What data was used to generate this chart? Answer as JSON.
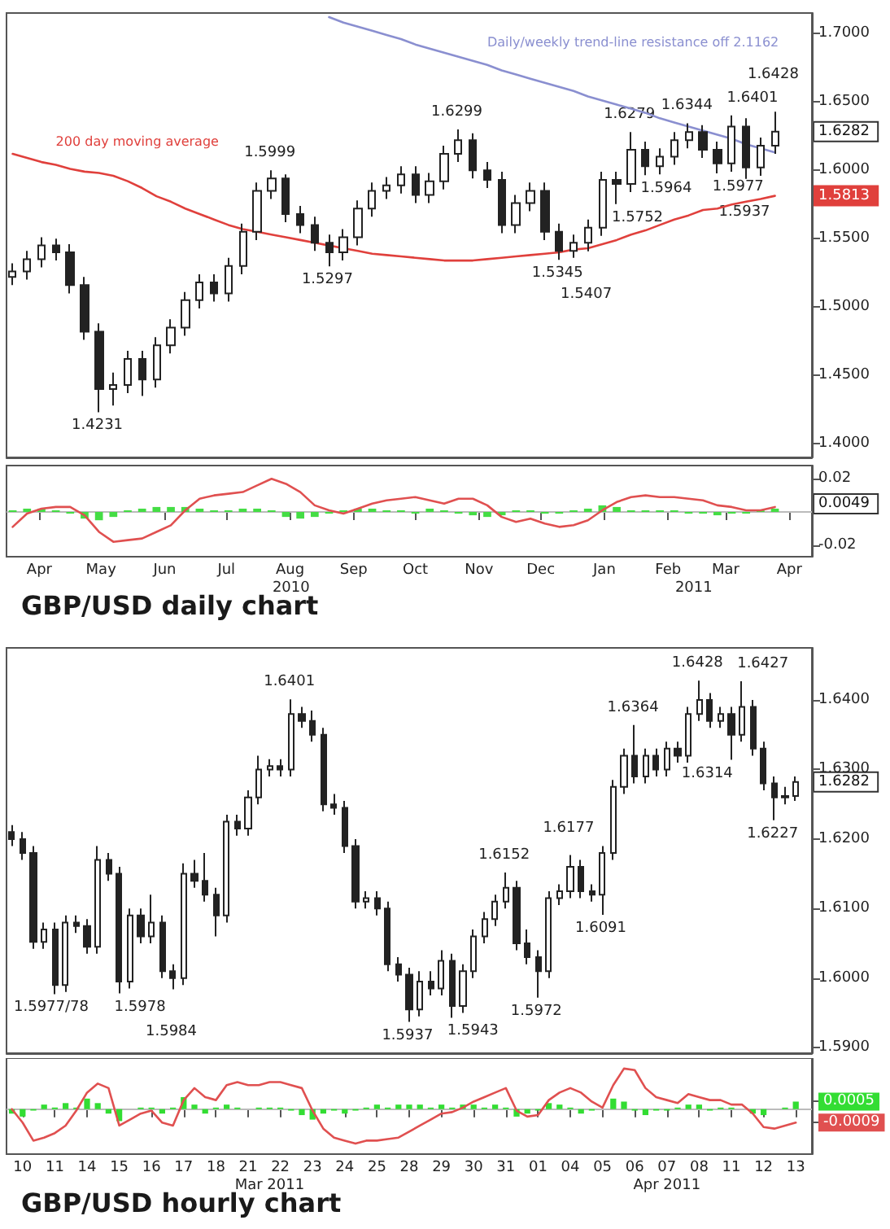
{
  "chart_data": [
    {
      "type": "candlestick",
      "color": "#222222",
      "tick_labels": "y",
      "x": [
        "2010-04-02",
        "2010-04-09",
        "2010-04-16",
        "2010-04-23",
        "2010-04-30",
        "2010-05-07",
        "2010-05-14",
        "2010-05-21",
        "2010-05-28",
        "2010-06-04",
        "2010-06-11",
        "2010-06-18",
        "2010-06-25",
        "2010-07-02",
        "2010-07-09",
        "2010-07-16",
        "2010-07-23",
        "2010-07-30",
        "2010-08-06",
        "2010-08-13",
        "2010-08-20",
        "2010-08-27",
        "2010-09-03",
        "2010-09-10",
        "2010-09-17",
        "2010-09-24",
        "2010-10-01",
        "2010-10-08",
        "2010-10-15",
        "2010-10-22",
        "2010-10-29",
        "2010-11-05",
        "2010-11-12",
        "2010-11-19",
        "2010-11-26",
        "2010-12-03",
        "2010-12-10",
        "2010-12-17",
        "2010-12-24",
        "2010-12-31",
        "2011-01-07",
        "2011-01-14",
        "2011-01-21",
        "2011-01-28",
        "2011-02-04",
        "2011-02-11",
        "2011-02-18",
        "2011-02-25",
        "2011-03-04",
        "2011-03-11",
        "2011-03-18",
        "2011-03-25",
        "2011-04-01",
        "2011-04-08"
      ],
      "ohlc": [
        [
          1.522,
          1.532,
          1.516,
          1.526
        ],
        [
          1.526,
          1.541,
          1.52,
          1.535
        ],
        [
          1.535,
          1.551,
          1.529,
          1.545
        ],
        [
          1.545,
          1.55,
          1.534,
          1.54
        ],
        [
          1.54,
          1.546,
          1.51,
          1.516
        ],
        [
          1.516,
          1.522,
          1.476,
          1.482
        ],
        [
          1.482,
          1.488,
          1.4231,
          1.44
        ],
        [
          1.44,
          1.452,
          1.428,
          1.443
        ],
        [
          1.443,
          1.468,
          1.437,
          1.462
        ],
        [
          1.462,
          1.468,
          1.435,
          1.447
        ],
        [
          1.447,
          1.478,
          1.441,
          1.472
        ],
        [
          1.472,
          1.491,
          1.466,
          1.485
        ],
        [
          1.485,
          1.511,
          1.479,
          1.505
        ],
        [
          1.505,
          1.524,
          1.499,
          1.518
        ],
        [
          1.518,
          1.524,
          1.504,
          1.51
        ],
        [
          1.51,
          1.536,
          1.504,
          1.53
        ],
        [
          1.53,
          1.561,
          1.524,
          1.555
        ],
        [
          1.555,
          1.591,
          1.549,
          1.585
        ],
        [
          1.585,
          1.5999,
          1.579,
          1.594
        ],
        [
          1.594,
          1.597,
          1.562,
          1.568
        ],
        [
          1.568,
          1.574,
          1.554,
          1.56
        ],
        [
          1.56,
          1.566,
          1.541,
          1.547
        ],
        [
          1.547,
          1.553,
          1.5297,
          1.54
        ],
        [
          1.54,
          1.557,
          1.534,
          1.551
        ],
        [
          1.551,
          1.578,
          1.545,
          1.572
        ],
        [
          1.572,
          1.591,
          1.566,
          1.585
        ],
        [
          1.585,
          1.595,
          1.579,
          1.589
        ],
        [
          1.589,
          1.603,
          1.583,
          1.597
        ],
        [
          1.597,
          1.603,
          1.576,
          1.582
        ],
        [
          1.582,
          1.598,
          1.576,
          1.592
        ],
        [
          1.592,
          1.618,
          1.586,
          1.612
        ],
        [
          1.612,
          1.6299,
          1.606,
          1.622
        ],
        [
          1.622,
          1.627,
          1.594,
          1.6
        ],
        [
          1.6,
          1.606,
          1.587,
          1.593
        ],
        [
          1.593,
          1.599,
          1.554,
          1.56
        ],
        [
          1.56,
          1.582,
          1.554,
          1.576
        ],
        [
          1.576,
          1.591,
          1.57,
          1.585
        ],
        [
          1.585,
          1.591,
          1.549,
          1.555
        ],
        [
          1.555,
          1.561,
          1.5345,
          1.541
        ],
        [
          1.541,
          1.553,
          1.536,
          1.547
        ],
        [
          1.547,
          1.564,
          1.5407,
          1.558
        ],
        [
          1.558,
          1.599,
          1.552,
          1.593
        ],
        [
          1.593,
          1.599,
          1.5752,
          1.59
        ],
        [
          1.59,
          1.6279,
          1.584,
          1.615
        ],
        [
          1.615,
          1.621,
          1.5964,
          1.603
        ],
        [
          1.603,
          1.616,
          1.597,
          1.61
        ],
        [
          1.61,
          1.628,
          1.604,
          1.622
        ],
        [
          1.622,
          1.6344,
          1.616,
          1.628
        ],
        [
          1.628,
          1.633,
          1.609,
          1.615
        ],
        [
          1.615,
          1.621,
          1.5977,
          1.605
        ],
        [
          1.605,
          1.6401,
          1.599,
          1.632
        ],
        [
          1.632,
          1.638,
          1.5937,
          1.602
        ],
        [
          1.602,
          1.624,
          1.596,
          1.618
        ],
        [
          1.618,
          1.6428,
          1.612,
          1.6282
        ]
      ],
      "series": [
        {
          "type": "line",
          "name": "200 day moving average",
          "color": "#e0403c",
          "values": [
            1.612,
            1.609,
            1.606,
            1.604,
            1.601,
            1.599,
            1.598,
            1.596,
            1.592,
            1.587,
            1.581,
            1.577,
            1.572,
            1.568,
            1.564,
            1.56,
            1.557,
            1.555,
            1.553,
            1.551,
            1.549,
            1.547,
            1.545,
            1.543,
            1.541,
            1.539,
            1.538,
            1.537,
            1.536,
            1.535,
            1.534,
            1.534,
            1.534,
            1.535,
            1.536,
            1.537,
            1.538,
            1.539,
            1.54,
            1.542,
            1.543,
            1.546,
            1.549,
            1.553,
            1.556,
            1.56,
            1.564,
            1.567,
            1.571,
            1.572,
            1.575,
            1.577,
            1.579,
            1.5813
          ]
        },
        {
          "type": "line",
          "name": "Daily/weekly trend-line resistance off 2.1162",
          "color": "#8a8fd0",
          "values": [
            null,
            null,
            null,
            null,
            null,
            null,
            null,
            null,
            null,
            null,
            null,
            null,
            null,
            null,
            null,
            null,
            null,
            null,
            null,
            null,
            null,
            null,
            1.712,
            1.708,
            1.705,
            1.702,
            1.699,
            1.696,
            1.692,
            1.689,
            1.686,
            1.683,
            1.68,
            1.677,
            1.673,
            1.67,
            1.667,
            1.664,
            1.661,
            1.658,
            1.654,
            1.651,
            1.648,
            1.645,
            1.642,
            1.638,
            1.635,
            1.632,
            1.629,
            1.626,
            1.623,
            1.619,
            1.616,
            1.613
          ]
        }
      ],
      "xlim": [
        "2010-03-30",
        "2011-04-26"
      ],
      "ylim": [
        1.39,
        1.715
      ],
      "yticks": [
        {
          "value": 1.4,
          "label": "1.4000"
        },
        {
          "value": 1.45,
          "label": "1.4500"
        },
        {
          "value": 1.5,
          "label": "1.5000"
        },
        {
          "value": 1.55,
          "label": "1.5500"
        },
        {
          "value": 1.6,
          "label": "1.6000"
        },
        {
          "value": 1.65,
          "label": "1.6500"
        },
        {
          "value": 1.7,
          "label": "1.7000"
        }
      ],
      "annotations": [
        {
          "text": "1.4231",
          "x": "2010-05-14",
          "y": 1.4231
        },
        {
          "text": "1.5999",
          "x": "2010-08-06",
          "y": 1.5999
        },
        {
          "text": "1.5297",
          "x": "2010-09-03",
          "y": 1.5297
        },
        {
          "text": "1.6299",
          "x": "2010-11-05",
          "y": 1.6299
        },
        {
          "text": "1.5345",
          "x": "2010-12-24",
          "y": 1.5345
        },
        {
          "text": "1.5407",
          "x": "2011-01-07",
          "y": 1.5407
        },
        {
          "text": "1.5752",
          "x": "2011-01-21",
          "y": 1.5752
        },
        {
          "text": "1.6279",
          "x": "2011-01-28",
          "y": 1.6279
        },
        {
          "text": "1.5964",
          "x": "2011-02-04",
          "y": 1.5964
        },
        {
          "text": "1.6344",
          "x": "2011-02-25",
          "y": 1.6344
        },
        {
          "text": "1.5977",
          "x": "2011-03-11",
          "y": 1.5977
        },
        {
          "text": "1.6401",
          "x": "2011-03-18",
          "y": 1.6401
        },
        {
          "text": "1.5937",
          "x": "2011-03-25",
          "y": 1.5937
        },
        {
          "text": "1.6428",
          "x": "2011-04-08",
          "y": 1.6428
        },
        {
          "text": "1.6282",
          "y": 1.6282
        },
        {
          "text": "1.5813",
          "y": 1.5813
        }
      ]
    },
    {
      "type": "line",
      "title": "GBP/USD daily chart",
      "x": [
        "2010-04-02",
        "2010-04-09",
        "2010-04-16",
        "2010-04-23",
        "2010-04-30",
        "2010-05-07",
        "2010-05-14",
        "2010-05-21",
        "2010-05-28",
        "2010-06-04",
        "2010-06-11",
        "2010-06-18",
        "2010-06-25",
        "2010-07-02",
        "2010-07-09",
        "2010-07-16",
        "2010-07-23",
        "2010-07-30",
        "2010-08-06",
        "2010-08-13",
        "2010-08-20",
        "2010-08-27",
        "2010-09-03",
        "2010-09-10",
        "2010-09-17",
        "2010-09-24",
        "2010-10-01",
        "2010-10-08",
        "2010-10-15",
        "2010-10-22",
        "2010-10-29",
        "2010-11-05",
        "2010-11-12",
        "2010-11-19",
        "2010-11-26",
        "2010-12-03",
        "2010-12-10",
        "2010-12-17",
        "2010-12-24",
        "2010-12-31",
        "2011-01-07",
        "2011-01-14",
        "2011-01-21",
        "2011-01-28",
        "2011-02-04",
        "2011-02-11",
        "2011-02-18",
        "2011-02-25",
        "2011-03-04",
        "2011-03-11",
        "2011-03-18",
        "2011-03-25",
        "2011-04-01",
        "2011-04-08"
      ],
      "series": [
        {
          "type": "bar",
          "color": "#44dd44",
          "values": [
            0.001,
            0.002,
            0.002,
            0.001,
            -0.001,
            -0.004,
            -0.005,
            -0.003,
            0.001,
            0.002,
            0.003,
            0.003,
            0.003,
            0.002,
            0.001,
            0.001,
            0.002,
            0.002,
            0.001,
            -0.003,
            -0.004,
            -0.003,
            -0.001,
            0.001,
            0.002,
            0.002,
            0.001,
            0.001,
            -0.001,
            0.002,
            0.001,
            -0.001,
            -0.002,
            -0.003,
            -0.002,
            0.001,
            0.001,
            -0.001,
            -0.001,
            0.001,
            0.002,
            0.004,
            0.003,
            0.001,
            0.001,
            0.001,
            0.001,
            -0.001,
            -0.001,
            -0.002,
            -0.001,
            -0.001,
            0.001,
            0.002
          ]
        },
        {
          "type": "line",
          "color": "#e05050",
          "values": [
            -0.009,
            -0.001,
            0.002,
            0.003,
            0.003,
            -0.002,
            -0.012,
            -0.018,
            -0.017,
            -0.016,
            -0.012,
            -0.008,
            0.001,
            0.008,
            0.01,
            0.011,
            0.012,
            0.016,
            0.02,
            0.017,
            0.012,
            0.004,
            0.001,
            -0.001,
            0.002,
            0.005,
            0.007,
            0.008,
            0.009,
            0.007,
            0.005,
            0.008,
            0.008,
            0.004,
            -0.003,
            -0.006,
            -0.004,
            -0.007,
            -0.009,
            -0.008,
            -0.005,
            0.001,
            0.006,
            0.009,
            0.01,
            0.009,
            0.009,
            0.008,
            0.007,
            0.004,
            0.003,
            0.001,
            0.001,
            0.003
          ]
        }
      ],
      "xlim": [
        "2010-03-30",
        "2011-04-26"
      ],
      "ylim": [
        -0.027,
        0.028
      ],
      "yticks": [
        -0.02,
        0.02
      ],
      "xticks": [
        {
          "value": "2010-04-15",
          "label": "Apr"
        },
        {
          "value": "2010-05-15",
          "label": "May"
        },
        {
          "value": "2010-06-15",
          "label": "Jun"
        },
        {
          "value": "2010-07-15",
          "label": "Jul"
        },
        {
          "value": "2010-08-15",
          "label": "Aug"
        },
        {
          "value": "2010-09-15",
          "label": "Sep"
        },
        {
          "value": "2010-10-15",
          "label": "Oct"
        },
        {
          "value": "2010-11-15",
          "label": "Nov"
        },
        {
          "value": "2010-12-15",
          "label": "Dec"
        },
        {
          "value": "2011-01-15",
          "label": "Jan"
        },
        {
          "value": "2011-02-15",
          "label": "Feb"
        },
        {
          "value": "2011-03-15",
          "label": "Mar"
        },
        {
          "value": "2011-04-15",
          "label": "Apr"
        }
      ],
      "ref_lines": [
        {
          "axis": "y",
          "value": 0,
          "color": "#bbbbbb"
        }
      ],
      "annotations": [
        {
          "text": "0.0049",
          "y": 0.0049
        },
        "2010",
        "2011"
      ]
    },
    {
      "type": "candlestick",
      "color": "#222222",
      "tick_labels": "y",
      "categories": [
        null,
        "10",
        null,
        null,
        "11",
        null,
        null,
        "14",
        null,
        null,
        "15",
        null,
        null,
        "16",
        null,
        null,
        "17",
        null,
        null,
        "18",
        null,
        null,
        "21",
        null,
        null,
        "22",
        null,
        null,
        "23",
        null,
        null,
        "24",
        null,
        null,
        "25",
        null,
        null,
        "28",
        null,
        null,
        "29",
        null,
        null,
        "30",
        null,
        null,
        "31",
        null,
        null,
        "01",
        null,
        null,
        "04",
        null,
        null,
        "05",
        null,
        null,
        "06",
        null,
        null,
        "07",
        null,
        null,
        "08",
        null,
        null,
        "11",
        null,
        null,
        "12",
        null,
        null,
        "13"
      ],
      "ohlc": [
        [
          1.621,
          1.622,
          1.619,
          1.62
        ],
        [
          1.62,
          1.621,
          1.617,
          1.618
        ],
        [
          1.618,
          1.619,
          1.6042,
          1.6052
        ],
        [
          1.6052,
          1.608,
          1.6042,
          1.607
        ],
        [
          1.607,
          1.608,
          1.5977,
          1.599
        ],
        [
          1.599,
          1.609,
          1.598,
          1.608
        ],
        [
          1.608,
          1.609,
          1.6065,
          1.6075
        ],
        [
          1.6075,
          1.6085,
          1.6035,
          1.6045
        ],
        [
          1.6045,
          1.619,
          1.6035,
          1.617
        ],
        [
          1.617,
          1.618,
          1.614,
          1.615
        ],
        [
          1.615,
          1.616,
          1.5978,
          1.5995
        ],
        [
          1.5995,
          1.61,
          1.5985,
          1.609
        ],
        [
          1.609,
          1.61,
          1.605,
          1.606
        ],
        [
          1.606,
          1.612,
          1.605,
          1.608
        ],
        [
          1.608,
          1.609,
          1.6,
          1.601
        ],
        [
          1.601,
          1.602,
          1.5984,
          1.6
        ],
        [
          1.6,
          1.6165,
          1.599,
          1.615
        ],
        [
          1.615,
          1.617,
          1.613,
          1.614
        ],
        [
          1.614,
          1.618,
          1.611,
          1.612
        ],
        [
          1.612,
          1.613,
          1.606,
          1.609
        ],
        [
          1.609,
          1.6235,
          1.608,
          1.6225
        ],
        [
          1.6225,
          1.6235,
          1.6205,
          1.6215
        ],
        [
          1.6215,
          1.627,
          1.6205,
          1.626
        ],
        [
          1.626,
          1.632,
          1.625,
          1.63
        ],
        [
          1.63,
          1.6315,
          1.629,
          1.6305
        ],
        [
          1.6305,
          1.6315,
          1.629,
          1.63
        ],
        [
          1.63,
          1.6401,
          1.629,
          1.638
        ],
        [
          1.638,
          1.639,
          1.636,
          1.637
        ],
        [
          1.637,
          1.6385,
          1.634,
          1.635
        ],
        [
          1.635,
          1.636,
          1.624,
          1.625
        ],
        [
          1.625,
          1.6265,
          1.6235,
          1.6245
        ],
        [
          1.6245,
          1.6255,
          1.618,
          1.619
        ],
        [
          1.619,
          1.62,
          1.61,
          1.611
        ],
        [
          1.611,
          1.6125,
          1.61,
          1.6115
        ],
        [
          1.6115,
          1.6125,
          1.609,
          1.61
        ],
        [
          1.61,
          1.611,
          1.601,
          1.602
        ],
        [
          1.602,
          1.603,
          1.5995,
          1.6005
        ],
        [
          1.6005,
          1.6015,
          1.5937,
          1.5955
        ],
        [
          1.5955,
          1.601,
          1.5945,
          1.5995
        ],
        [
          1.5995,
          1.601,
          1.5975,
          1.5985
        ],
        [
          1.5985,
          1.604,
          1.5975,
          1.6025
        ],
        [
          1.6025,
          1.6035,
          1.5943,
          1.596
        ],
        [
          1.596,
          1.602,
          1.595,
          1.601
        ],
        [
          1.601,
          1.607,
          1.6,
          1.606
        ],
        [
          1.606,
          1.6095,
          1.605,
          1.6085
        ],
        [
          1.6085,
          1.612,
          1.6075,
          1.611
        ],
        [
          1.611,
          1.6152,
          1.61,
          1.613
        ],
        [
          1.613,
          1.614,
          1.604,
          1.605
        ],
        [
          1.605,
          1.607,
          1.602,
          1.603
        ],
        [
          1.603,
          1.604,
          1.5972,
          1.601
        ],
        [
          1.601,
          1.6125,
          1.6,
          1.6115
        ],
        [
          1.6115,
          1.6135,
          1.6105,
          1.6125
        ],
        [
          1.6125,
          1.6177,
          1.6115,
          1.616
        ],
        [
          1.616,
          1.617,
          1.6115,
          1.6125
        ],
        [
          1.6125,
          1.6135,
          1.611,
          1.612
        ],
        [
          1.612,
          1.619,
          1.6091,
          1.618
        ],
        [
          1.618,
          1.6285,
          1.617,
          1.6275
        ],
        [
          1.6275,
          1.633,
          1.6265,
          1.632
        ],
        [
          1.632,
          1.6364,
          1.628,
          1.629
        ],
        [
          1.629,
          1.633,
          1.628,
          1.632
        ],
        [
          1.632,
          1.633,
          1.629,
          1.63
        ],
        [
          1.63,
          1.634,
          1.629,
          1.633
        ],
        [
          1.633,
          1.634,
          1.631,
          1.632
        ],
        [
          1.632,
          1.639,
          1.631,
          1.638
        ],
        [
          1.638,
          1.6428,
          1.637,
          1.64
        ],
        [
          1.64,
          1.641,
          1.636,
          1.637
        ],
        [
          1.637,
          1.639,
          1.636,
          1.638
        ],
        [
          1.638,
          1.639,
          1.6314,
          1.635
        ],
        [
          1.635,
          1.6427,
          1.634,
          1.639
        ],
        [
          1.639,
          1.64,
          1.632,
          1.633
        ],
        [
          1.633,
          1.634,
          1.627,
          1.628
        ],
        [
          1.628,
          1.629,
          1.6227,
          1.626
        ],
        [
          1.626,
          1.6275,
          1.625,
          1.6262
        ],
        [
          1.6262,
          1.629,
          1.6255,
          1.6282
        ]
      ],
      "value_labels": [
        null,
        null,
        null,
        null,
        "1.5977/78",
        null,
        null,
        null,
        null,
        null,
        "1.5978",
        null,
        null,
        null,
        null,
        "1.5984",
        null,
        null,
        null,
        null,
        null,
        null,
        null,
        null,
        null,
        null,
        "1.6401",
        null,
        null,
        null,
        null,
        null,
        null,
        null,
        null,
        null,
        null,
        "1.5937",
        null,
        null,
        null,
        "1.5943",
        null,
        null,
        null,
        null,
        "1.6152",
        null,
        null,
        "1.5972",
        null,
        null,
        "1.6177",
        null,
        null,
        "1.6091",
        null,
        null,
        "1.6364",
        null,
        null,
        null,
        null,
        null,
        "1.6428",
        null,
        null,
        "1.6314",
        "1.6427",
        null,
        null,
        "1.6227",
        null,
        null
      ],
      "ylim": [
        1.5892,
        1.6475
      ],
      "yticks": [
        {
          "value": 1.59,
          "label": "1.5900"
        },
        {
          "value": 1.6,
          "label": "1.6000"
        },
        {
          "value": 1.61,
          "label": "1.6100"
        },
        {
          "value": 1.62,
          "label": "1.6200"
        },
        {
          "value": 1.63,
          "label": "1.6300"
        },
        {
          "value": 1.64,
          "label": "1.6400"
        }
      ],
      "annotations": [
        {
          "text": "1.6282",
          "y": 1.6282
        }
      ]
    },
    {
      "type": "line",
      "title": "GBP/USD hourly chart",
      "ylim": [
        -0.003,
        0.0034
      ],
      "yticks": [
        -0.0009,
        0.0005
      ],
      "categories": [
        null,
        "10",
        null,
        null,
        "11",
        null,
        null,
        "14",
        null,
        null,
        "15",
        null,
        null,
        "16",
        null,
        null,
        "17",
        null,
        null,
        "18",
        null,
        null,
        "21",
        null,
        null,
        "22",
        null,
        null,
        "23",
        null,
        null,
        "24",
        null,
        null,
        "25",
        null,
        null,
        "28",
        null,
        null,
        "29",
        null,
        null,
        "30",
        null,
        null,
        "31",
        null,
        null,
        "01",
        null,
        null,
        "04",
        null,
        null,
        "05",
        null,
        null,
        "06",
        null,
        null,
        "07",
        null,
        null,
        "08",
        null,
        null,
        "11",
        null,
        null,
        "12",
        null,
        null,
        "13"
      ],
      "series": [
        {
          "type": "bar",
          "color": "#33dd33",
          "values": [
            -0.0003,
            -0.0005,
            -0.0001,
            0.0003,
            0.0001,
            0.0004,
            0.0001,
            0.0007,
            0.0004,
            -0.0003,
            -0.0008,
            0,
            0.0001,
            0.0001,
            -0.0003,
            0.0001,
            0.0008,
            0.0003,
            -0.0003,
            0.0001,
            0.0003,
            0.0001,
            0,
            0.0001,
            0.0001,
            0.0001,
            -0.0001,
            -0.0004,
            -0.0007,
            -0.0003,
            -0.0001,
            -0.0003,
            -0.0001,
            0.0001,
            0.0003,
            0.0001,
            0.0003,
            0.0003,
            0.0003,
            0.0001,
            0.0003,
            0.0001,
            0.0003,
            0.0003,
            0.0001,
            0.0003,
            0.0001,
            -0.0005,
            -0.0003,
            -0.0001,
            0.0004,
            0.0003,
            0.0001,
            -0.0003,
            -0.0001,
            0,
            0.0007,
            0.0005,
            -0.0001,
            -0.0004,
            -0.0001,
            -0.0001,
            0.0001,
            0.0003,
            0.0003,
            -0.0001,
            0.0001,
            0.0001,
            0,
            -0.0003,
            -0.0004,
            0,
            0.0001,
            0.0005
          ]
        },
        {
          "type": "line",
          "color": "#e05050",
          "values": [
            0,
            -0.0009,
            -0.0021,
            -0.0019,
            -0.0016,
            -0.0011,
            -0.0001,
            0.0011,
            0.0017,
            0.0014,
            -0.0011,
            -0.0007,
            -0.0003,
            -0.0001,
            -0.0009,
            -0.0011,
            0.0006,
            0.0014,
            0.0008,
            0.0006,
            0.0016,
            0.0018,
            0.0016,
            0.0016,
            0.0018,
            0.0018,
            0.0016,
            0.0014,
            -0.0001,
            -0.0013,
            -0.0019,
            -0.0021,
            -0.0023,
            -0.0021,
            -0.0021,
            -0.002,
            -0.0019,
            -0.0015,
            -0.0011,
            -0.0007,
            -0.0003,
            -0.0002,
            0.0001,
            0.0005,
            0.0008,
            0.0011,
            0.0014,
            -0.0001,
            -0.0005,
            -0.0004,
            0.0006,
            0.0011,
            0.0014,
            0.0011,
            0.0005,
            0.0001,
            0.0016,
            0.0027,
            0.0026,
            0.0014,
            0.0008,
            0.0006,
            0.0004,
            0.001,
            0.0008,
            0.0006,
            0.0006,
            0.0003,
            0.0003,
            -0.0003,
            -0.0012,
            -0.0013,
            -0.0011,
            -0.0009
          ]
        }
      ],
      "ref_lines": [
        {
          "axis": "y",
          "value": 0,
          "color": "#bbbbbb"
        }
      ],
      "annotations": [
        "Mar 2011",
        "Apr 2011"
      ]
    }
  ]
}
